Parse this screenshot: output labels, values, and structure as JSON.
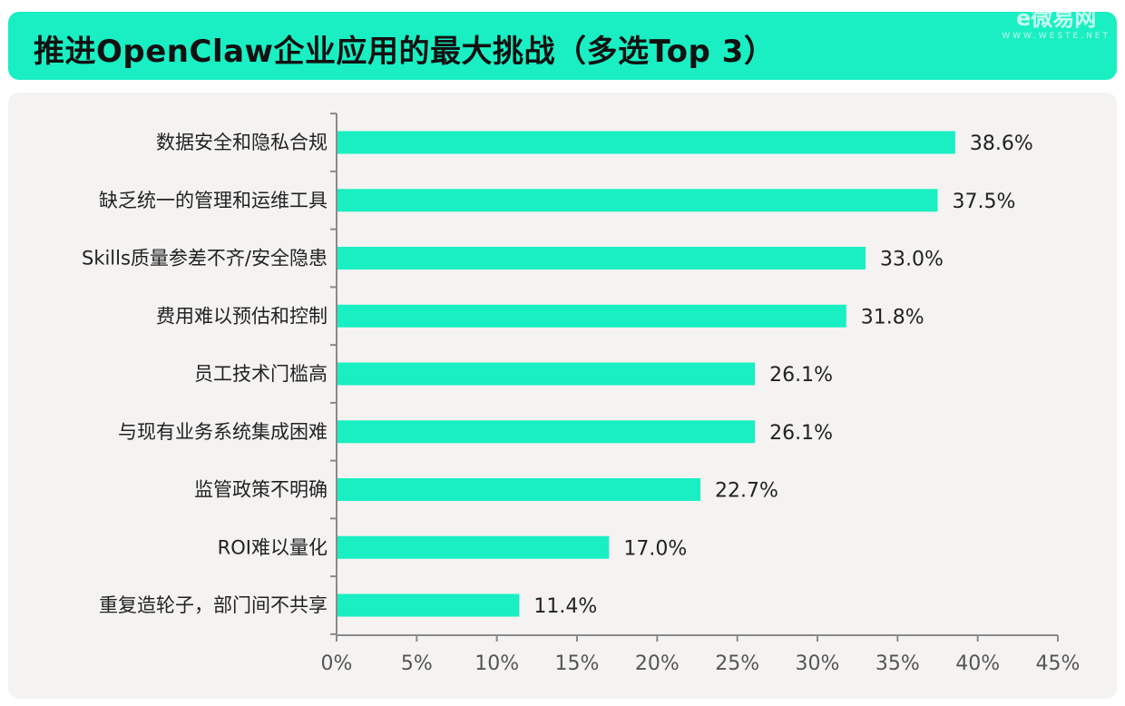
{
  "header": {
    "title": "推进OpenClaw企业应用的最大挑战（多选Top 3）",
    "watermark_logo": "e微易网",
    "watermark_url": "WWW.WESTE.NET"
  },
  "colors": {
    "accent": "#19efc2",
    "bar": "#19efc2",
    "panel": "#f4f3f1",
    "axis": "#8a8a8a",
    "text": "#222222"
  },
  "chart_data": {
    "type": "bar",
    "orientation": "horizontal",
    "title": "推进OpenClaw企业应用的最大挑战（多选Top 3）",
    "xlabel": "",
    "ylabel": "",
    "categories": [
      "数据安全和隐私合规",
      "缺乏统一的管理和运维工具",
      "Skills质量参差不齐/安全隐患",
      "费用难以预估和控制",
      "员工技术门槛高",
      "与现有业务系统集成困难",
      "监管政策不明确",
      "ROI难以量化",
      "重复造轮子，部门间不共享"
    ],
    "values": [
      38.6,
      37.5,
      33.0,
      31.8,
      26.1,
      26.1,
      22.7,
      17.0,
      11.4
    ],
    "value_labels": [
      "38.6%",
      "37.5%",
      "33.0%",
      "31.8%",
      "26.1%",
      "26.1%",
      "22.7%",
      "17.0%",
      "11.4%"
    ],
    "xlim": [
      0,
      45
    ],
    "x_ticks": [
      0,
      5,
      10,
      15,
      20,
      25,
      30,
      35,
      40,
      45
    ],
    "x_tick_labels": [
      "0%",
      "5%",
      "10%",
      "15%",
      "20%",
      "25%",
      "30%",
      "35%",
      "40%",
      "45%"
    ],
    "grid": false,
    "legend": "none"
  }
}
